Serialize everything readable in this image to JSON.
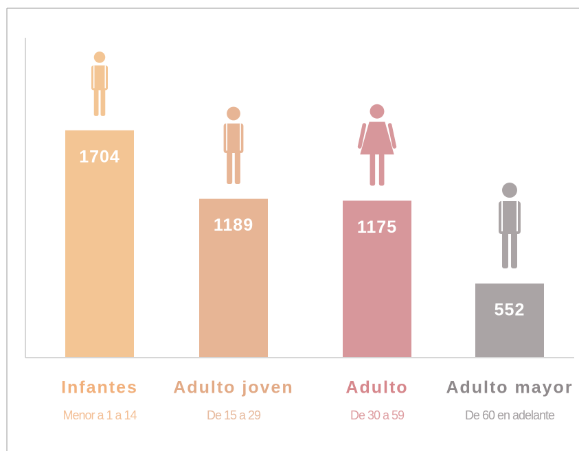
{
  "chart_data": {
    "type": "bar",
    "categories": [
      "Infantes",
      "Adulto joven",
      "Adulto",
      "Adulto mayor"
    ],
    "subtitles": [
      "Menor a 1 a 14",
      "De 15 a 29",
      "De 30 a 59",
      "De 60 en adelante"
    ],
    "values": [
      1704,
      1189,
      1175,
      552
    ],
    "colors": [
      "#f3c594",
      "#e7b595",
      "#d7979b",
      "#aaa4a5"
    ],
    "label_colors": [
      "#f1b07c",
      "#e2aa86",
      "#d6878c",
      "#8e898b"
    ],
    "ylim": [
      0,
      2400
    ]
  }
}
